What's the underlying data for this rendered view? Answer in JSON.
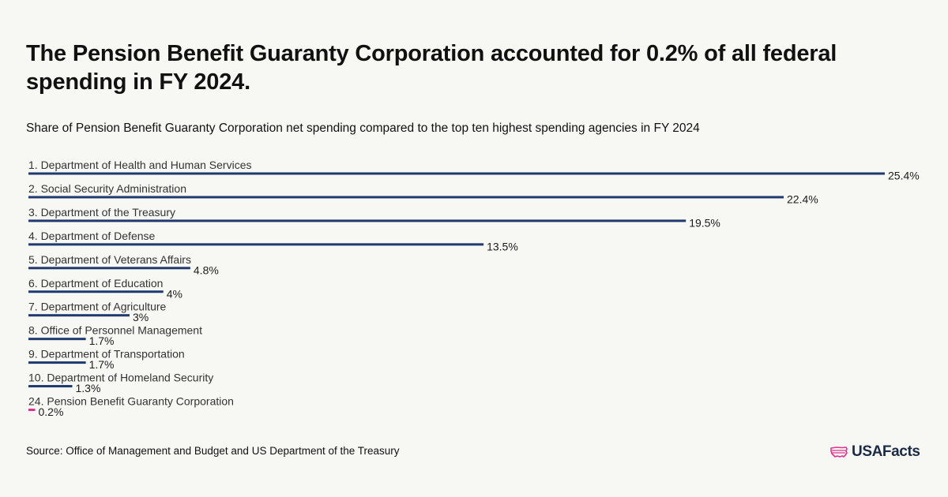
{
  "header": {
    "title": "The Pension Benefit Guaranty Corporation accounted for 0.2% of all federal spending in FY 2024.",
    "subtitle": "Share of Pension Benefit Guaranty Corporation net spending compared to the top ten highest spending agencies in FY 2024"
  },
  "footer": {
    "source": "Source: Office of Management and Budget and US Department of the Treasury",
    "logo_text": "USAFacts"
  },
  "colors": {
    "primary_bar": "#1e3a6e",
    "highlight_bar": "#e0338f",
    "background": "#f7f7f3"
  },
  "chart_data": {
    "type": "bar",
    "orientation": "horizontal",
    "title": "Share of Pension Benefit Guaranty Corporation net spending compared to the top ten highest spending agencies in FY 2024",
    "unit": "%",
    "xlim": [
      0,
      25.4
    ],
    "categories": [
      "1. Department of Health and Human Services",
      "2. Social Security Administration",
      "3. Department of the Treasury",
      "4. Department of Defense",
      "5. Department of Veterans Affairs",
      "6. Department of Education",
      "7. Department of Agriculture",
      "8. Office of Personnel Management",
      "9. Department of Transportation",
      "10. Department of Homeland Security",
      "24. Pension Benefit Guaranty Corporation"
    ],
    "values": [
      25.4,
      22.4,
      19.5,
      13.5,
      4.8,
      4,
      3,
      1.7,
      1.7,
      1.3,
      0.2
    ],
    "value_labels": [
      "25.4%",
      "22.4%",
      "19.5%",
      "13.5%",
      "4.8%",
      "4%",
      "3%",
      "1.7%",
      "1.7%",
      "1.3%",
      "0.2%"
    ],
    "highlight": [
      false,
      false,
      false,
      false,
      false,
      false,
      false,
      false,
      false,
      false,
      true
    ]
  }
}
